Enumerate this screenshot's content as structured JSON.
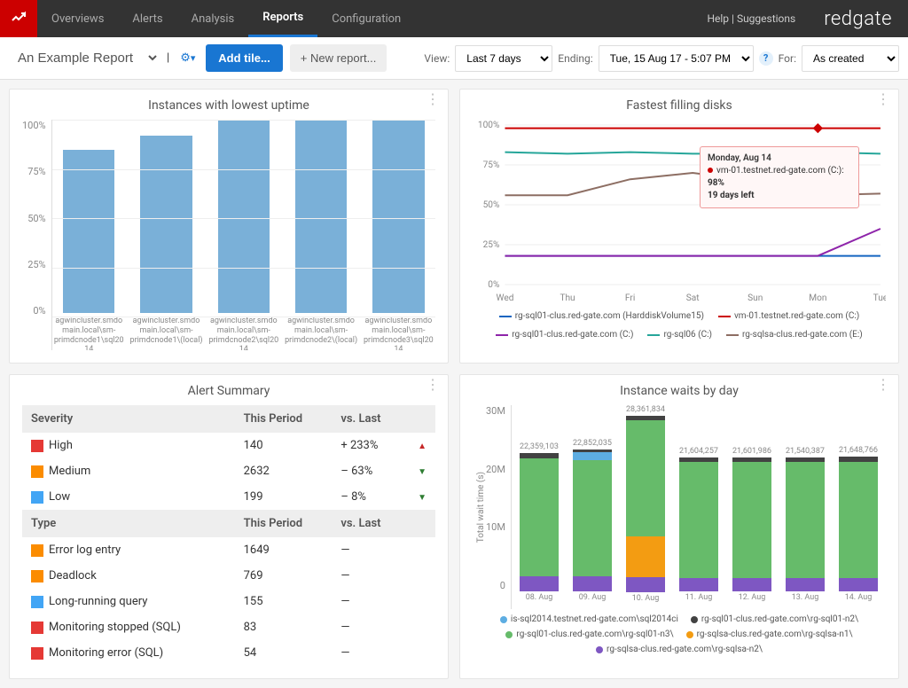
{
  "nav": {
    "items": [
      "Overviews",
      "Alerts",
      "Analysis",
      "Reports",
      "Configuration"
    ],
    "active": "Reports",
    "help": "Help",
    "suggestions": "Suggestions",
    "brand": "redgate"
  },
  "toolbar": {
    "report_name": "An Example Report",
    "add_tile": "Add tile...",
    "new_report": "+ New report...",
    "view_label": "View:",
    "view_value": "Last 7 days",
    "ending_label": "Ending:",
    "ending_value": "Tue, 15 Aug 17 - 5:07 PM",
    "for_label": "For:",
    "for_value": "As created"
  },
  "uptime_chart": {
    "title": "Instances with lowest uptime",
    "type": "bar",
    "ylim": [
      0,
      100
    ],
    "yticks": [
      0,
      25,
      50,
      75,
      100
    ],
    "ytick_labels": [
      "0%",
      "25%",
      "50%",
      "75%",
      "100%"
    ],
    "bar_color": "#7ab0d8",
    "grid_color": "#eeeeee",
    "bars": [
      {
        "label": "agwincluster.smdomain.local\\sm-primdcnode1\\sql2014",
        "value": 83
      },
      {
        "label": "agwincluster.smdomain.local\\sm-primdcnode1\\(local)",
        "value": 90
      },
      {
        "label": "agwincluster.smdomain.local\\sm-primdcnode2\\sql2014",
        "value": 98
      },
      {
        "label": "agwincluster.smdomain.local\\sm-primdcnode2\\(local)",
        "value": 98
      },
      {
        "label": "agwincluster.smdomain.local\\sm-primdcnode3\\sql2014",
        "value": 98
      }
    ]
  },
  "disks_chart": {
    "title": "Fastest filling disks",
    "type": "line",
    "ylim": [
      0,
      100
    ],
    "yticks": [
      0,
      25,
      50,
      75,
      100
    ],
    "ytick_labels": [
      "0%",
      "25%",
      "50%",
      "75%",
      "100%"
    ],
    "x_labels": [
      "Wed",
      "Thu",
      "Fri",
      "Sat",
      "Sun",
      "Mon",
      "Tue"
    ],
    "tooltip": {
      "date": "Monday, Aug 14",
      "server": "vm-01.testnet.red-gate.com (C:)",
      "value": "98%",
      "sub": "19 days left"
    },
    "series": [
      {
        "name": "rg-sql01-clus.red-gate.com (HarddiskVolume15)",
        "color": "#1565c0",
        "values": [
          18,
          18,
          18,
          18,
          18,
          18,
          18
        ]
      },
      {
        "name": "vm-01.testnet.red-gate.com (C:)",
        "color": "#cc0000",
        "values": [
          98,
          98,
          98,
          98,
          98,
          98,
          98
        ]
      },
      {
        "name": "rg-sql01-clus.red-gate.com (C:)",
        "color": "#8e24aa",
        "values": [
          18,
          18,
          18,
          18,
          18,
          18,
          35
        ]
      },
      {
        "name": "rg-sql06 (C:)",
        "color": "#26a69a",
        "values": [
          83,
          82,
          83,
          82,
          82,
          83,
          82
        ]
      },
      {
        "name": "rg-sqlsa-clus.red-gate.com (E:)",
        "color": "#8d6e63",
        "values": [
          56,
          56,
          66,
          70,
          65,
          56,
          57
        ]
      }
    ]
  },
  "alerts": {
    "title": "Alert Summary",
    "severity_header": "Severity",
    "period_header": "This Period",
    "vs_header": "vs. Last",
    "type_header": "Type",
    "severity_rows": [
      {
        "color": "#e53935",
        "label": "High",
        "period": "140",
        "vs": "+ 233%",
        "dir": "up"
      },
      {
        "color": "#fb8c00",
        "label": "Medium",
        "period": "2632",
        "vs": "– 63%",
        "dir": "down"
      },
      {
        "color": "#42a5f5",
        "label": "Low",
        "period": "199",
        "vs": "– 8%",
        "dir": "down"
      }
    ],
    "type_rows": [
      {
        "color": "#fb8c00",
        "label": "Error log entry",
        "period": "1649",
        "vs": "—"
      },
      {
        "color": "#fb8c00",
        "label": "Deadlock",
        "period": "769",
        "vs": "—"
      },
      {
        "color": "#42a5f5",
        "label": "Long-running query",
        "period": "155",
        "vs": "—"
      },
      {
        "color": "#e53935",
        "label": "Monitoring stopped (SQL)",
        "period": "83",
        "vs": "—"
      },
      {
        "color": "#e53935",
        "label": "Monitoring error (SQL)",
        "period": "54",
        "vs": "—"
      }
    ]
  },
  "waits_chart": {
    "title": "Instance waits by day",
    "type": "stacked-bar",
    "ylabel": "Total wait time (s)",
    "ylim": [
      0,
      30000000
    ],
    "yticks": [
      0,
      10000000,
      20000000,
      30000000
    ],
    "ytick_labels": [
      "0",
      "10M",
      "20M",
      "30M"
    ],
    "colors": {
      "is": "#5dade2",
      "n2": "#424242",
      "n3": "#66bb6a",
      "n1": "#f39c12",
      "sa": "#7e57c2"
    },
    "legend": [
      {
        "key": "is",
        "label": "is-sql2014.testnet.red-gate.com\\sql2014ci"
      },
      {
        "key": "n2",
        "label": "rg-sql01-clus.red-gate.com\\rg-sql01-n2\\"
      },
      {
        "key": "n3",
        "label": "rg-sql01-clus.red-gate.com\\rg-sql01-n3\\"
      },
      {
        "key": "n1",
        "label": "rg-sqlsa-clus.red-gate.com\\rg-sqlsa-n1\\"
      },
      {
        "key": "sa",
        "label": "rg-sqlsa-clus.red-gate.com\\rg-sqlsa-n2\\"
      }
    ],
    "days": [
      {
        "label": "08. Aug",
        "total": "22,359,103",
        "segs": {
          "sa": 2400000,
          "n3": 19000000,
          "n1": 0,
          "is": 0,
          "n2": 900000
        }
      },
      {
        "label": "09. Aug",
        "total": "22,852,035",
        "segs": {
          "sa": 2400000,
          "n3": 18800000,
          "n1": 0,
          "is": 1200000,
          "n2": 450000
        }
      },
      {
        "label": "10. Aug",
        "total": "28,361,834",
        "segs": {
          "sa": 2400000,
          "n1": 6500000,
          "n3": 18700000,
          "is": 0,
          "n2": 760000
        }
      },
      {
        "label": "11. Aug",
        "total": "21,604,257",
        "segs": {
          "sa": 2200000,
          "n3": 18700000,
          "n1": 0,
          "is": 0,
          "n2": 700000
        }
      },
      {
        "label": "12. Aug",
        "total": "21,601,986",
        "segs": {
          "sa": 2200000,
          "n3": 18700000,
          "n1": 0,
          "is": 0,
          "n2": 700000
        }
      },
      {
        "label": "13. Aug",
        "total": "21,540,387",
        "segs": {
          "sa": 2200000,
          "n3": 18600000,
          "n1": 0,
          "is": 0,
          "n2": 740000
        }
      },
      {
        "label": "14. Aug",
        "total": "21,648,766",
        "segs": {
          "sa": 2200000,
          "n3": 18700000,
          "n1": 0,
          "is": 0,
          "n2": 748000
        }
      }
    ]
  }
}
